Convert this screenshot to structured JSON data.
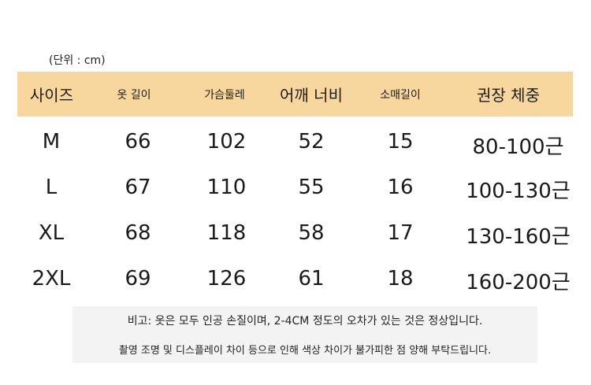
{
  "unit_label": "(단위 : cm)",
  "headers": {
    "size": "사이즈",
    "length": "옷 길이",
    "chest": "가슴둘레",
    "shoulder": "어깨 너비",
    "sleeve": "소매길이",
    "weight": "권장 체중"
  },
  "rows": [
    {
      "size": "M",
      "length": "66",
      "chest": "102",
      "shoulder": "52",
      "sleeve": "15",
      "weight": "80-100근"
    },
    {
      "size": "L",
      "length": "67",
      "chest": "110",
      "shoulder": "55",
      "sleeve": "16",
      "weight": "100-130근"
    },
    {
      "size": "XL",
      "length": "68",
      "chest": "118",
      "shoulder": "58",
      "sleeve": "17",
      "weight": "130-160근"
    },
    {
      "size": "2XL",
      "length": "69",
      "chest": "126",
      "shoulder": "61",
      "sleeve": "18",
      "weight": "160-200근"
    }
  ],
  "notes": [
    "비고: 옷은 모두 인공 손질이며, 2-4CM 정도의 오차가 있는 것은 정상입니다.",
    "촬영 조명 및 디스플레이 차이 등으로 인해 색상 차이가 불가피한 점 양해 부탁드립니다."
  ],
  "colors": {
    "header_band": "#f7d79d",
    "note_background": "#f3f3f3",
    "text": "#1a1a1a"
  }
}
